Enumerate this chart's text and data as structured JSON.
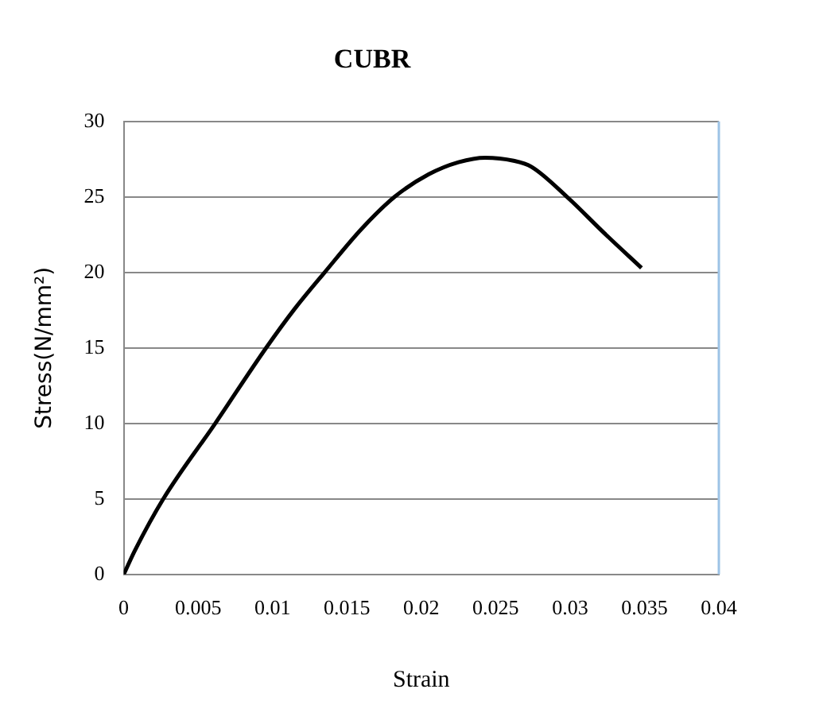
{
  "chart_data": {
    "type": "line",
    "title": "CUBR",
    "xlabel": "Strain",
    "ylabel": "Stress(N/mm²)",
    "series": [
      {
        "color": "#000000",
        "x": [
          0,
          0.00076,
          0.00266,
          0.00615,
          0.00957,
          0.0115,
          0.0135,
          0.016,
          0.0182,
          0.0205,
          0.0225,
          0.0243,
          0.0262,
          0.0274,
          0.0298,
          0.0323,
          0.0348
        ],
        "values": [
          0,
          1.6,
          5,
          10,
          15,
          17.6,
          20,
          22.9,
          25,
          26.5,
          27.3,
          27.6,
          27.4,
          27.0,
          25,
          22.6,
          20.3
        ]
      }
    ],
    "xlim": [
      0,
      0.04
    ],
    "xticks": [
      0,
      0.005,
      0.01,
      0.015,
      0.02,
      0.025,
      0.03,
      0.035,
      0.04
    ],
    "ylim": [
      0,
      30
    ],
    "yticks": [
      0,
      5,
      10,
      15,
      20,
      25,
      30
    ],
    "grid": "y",
    "legend": false,
    "marker": "none",
    "line_style": "solid"
  }
}
